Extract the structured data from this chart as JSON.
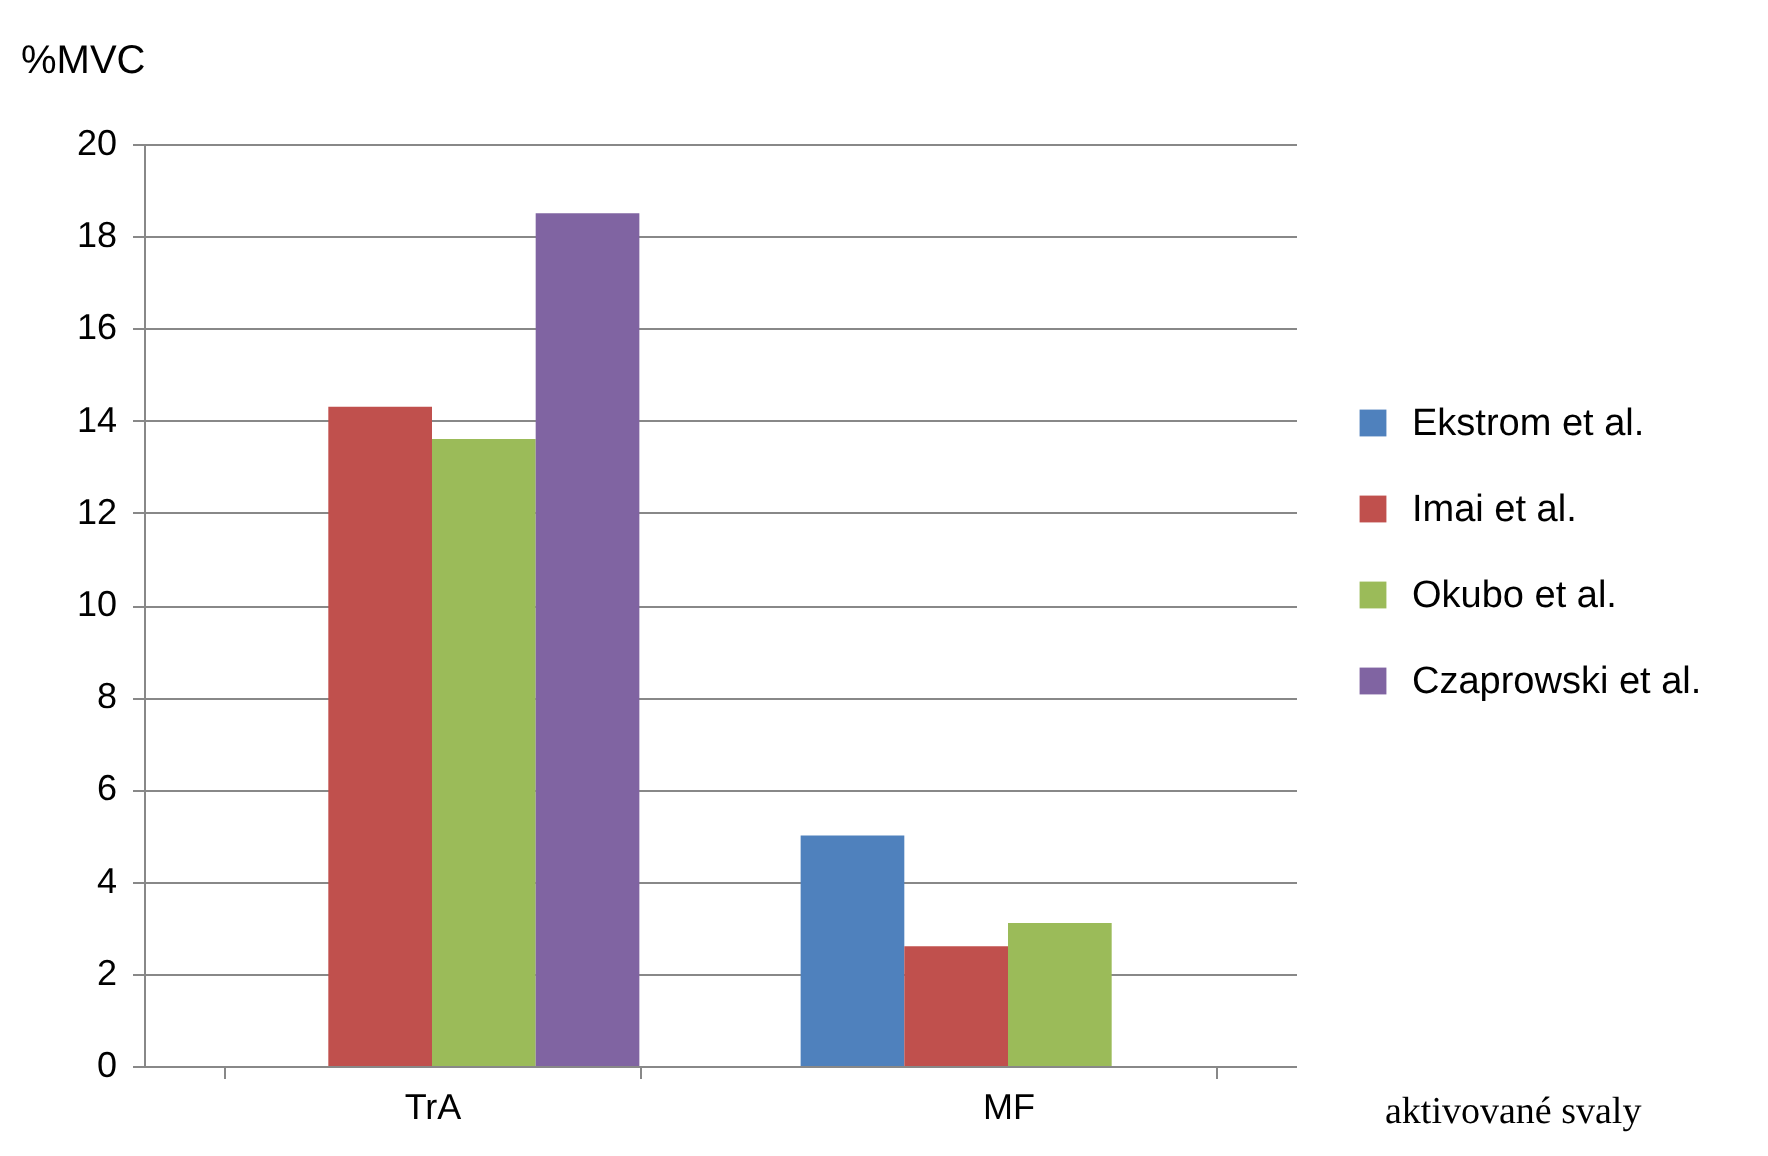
{
  "chart_data": {
    "type": "bar",
    "ylabel": "%MVC",
    "xlabel": "aktivované svaly",
    "categories": [
      "TrA",
      "MF"
    ],
    "series": [
      {
        "name": "Ekstrom et al.",
        "color": "#4f81bd",
        "values": [
          null,
          5.0
        ]
      },
      {
        "name": "Imai et al.",
        "color": "#c0504d",
        "values": [
          14.3,
          2.6
        ]
      },
      {
        "name": "Okubo et al.",
        "color": "#9bbb59",
        "values": [
          13.6,
          3.1
        ]
      },
      {
        "name": "Czaprowski et al.",
        "color": "#8064a2",
        "values": [
          18.5,
          null
        ]
      }
    ],
    "ylim": [
      0,
      20
    ],
    "yticks": [
      0,
      2,
      4,
      6,
      8,
      10,
      12,
      14,
      16,
      18,
      20
    ],
    "grid": "y",
    "legend": "right"
  }
}
